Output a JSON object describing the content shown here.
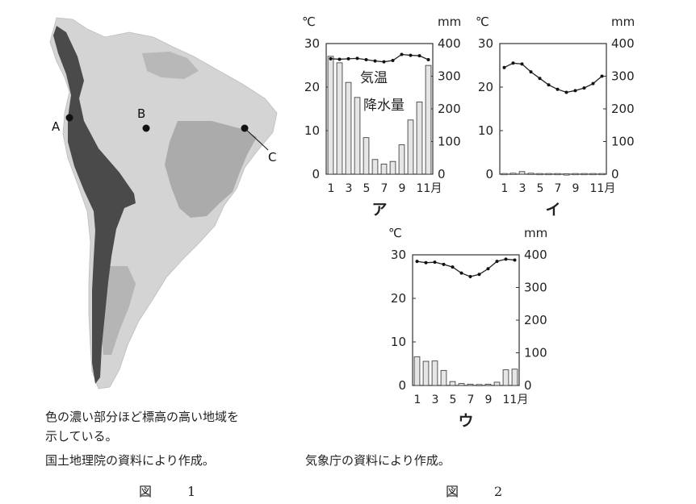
{
  "figure1": {
    "label": "図　1",
    "caption_lines": [
      "色の濃い部分ほど標高の高い地域を",
      "示している。"
    ],
    "source": "国土地理院の資料により作成。",
    "points": [
      {
        "id": "A",
        "name": "A"
      },
      {
        "id": "B",
        "name": "B"
      },
      {
        "id": "C",
        "name": "C"
      }
    ],
    "colors": {
      "low": "#d4d4d4",
      "mid": "#a9a9a9",
      "high": "#4a4a4a"
    }
  },
  "figure2": {
    "label": "図　2",
    "source": "気象庁の資料により作成。"
  },
  "chart_data": [
    {
      "type": "bar",
      "name": "ア",
      "title": "ア",
      "categories": [
        "1",
        "2",
        "3",
        "4",
        "5",
        "6",
        "7",
        "8",
        "9",
        "10",
        "11",
        "12"
      ],
      "x_tick_labels": [
        "1",
        "3",
        "5",
        "7",
        "9",
        "11月"
      ],
      "left_unit": "℃",
      "right_unit": "mm",
      "left_ticks": [
        "0",
        "10",
        "20",
        "30"
      ],
      "right_ticks": [
        "0",
        "100",
        "200",
        "300",
        "400"
      ],
      "left_range": [
        0,
        30
      ],
      "right_range": [
        0,
        400
      ],
      "annotations": [
        "気温",
        "降水量"
      ],
      "series": [
        {
          "name": "気温",
          "kind": "line",
          "axis": "left",
          "values": [
            26.5,
            26.4,
            26.5,
            26.6,
            26.3,
            26.0,
            25.8,
            26.1,
            27.5,
            27.3,
            27.2,
            26.3
          ]
        },
        {
          "name": "降水量",
          "kind": "bar",
          "axis": "right",
          "values": [
            361,
            341,
            281,
            235,
            112,
            45,
            31,
            39,
            90,
            166,
            221,
            333
          ]
        }
      ]
    },
    {
      "type": "bar",
      "name": "イ",
      "title": "イ",
      "categories": [
        "1",
        "2",
        "3",
        "4",
        "5",
        "6",
        "7",
        "8",
        "9",
        "10",
        "11",
        "12"
      ],
      "x_tick_labels": [
        "1",
        "3",
        "5",
        "7",
        "9",
        "11月"
      ],
      "left_unit": "℃",
      "right_unit": "mm",
      "left_ticks": [
        "0",
        "10",
        "20",
        "30"
      ],
      "right_ticks": [
        "0",
        "100",
        "200",
        "300",
        "400"
      ],
      "left_range": [
        0,
        30
      ],
      "right_range": [
        0,
        400
      ],
      "series": [
        {
          "name": "気温",
          "kind": "line",
          "axis": "left",
          "values": [
            24.5,
            25.5,
            25.3,
            23.5,
            22.0,
            20.5,
            19.5,
            18.8,
            19.2,
            19.8,
            20.8,
            22.5
          ]
        },
        {
          "name": "降水量",
          "kind": "bar",
          "axis": "right",
          "values": [
            2,
            3,
            8,
            3,
            2,
            2,
            2,
            1,
            2,
            2,
            2,
            2
          ]
        }
      ]
    },
    {
      "type": "bar",
      "name": "ウ",
      "title": "ウ",
      "categories": [
        "1",
        "2",
        "3",
        "4",
        "5",
        "6",
        "7",
        "8",
        "9",
        "10",
        "11",
        "12"
      ],
      "x_tick_labels": [
        "1",
        "3",
        "5",
        "7",
        "9",
        "11月"
      ],
      "left_unit": "℃",
      "right_unit": "mm",
      "left_ticks": [
        "0",
        "10",
        "20",
        "30"
      ],
      "right_ticks": [
        "0",
        "100",
        "200",
        "300",
        "400"
      ],
      "left_range": [
        0,
        30
      ],
      "right_range": [
        0,
        400
      ],
      "series": [
        {
          "name": "気温",
          "kind": "line",
          "axis": "left",
          "values": [
            28.5,
            28.2,
            28.3,
            27.8,
            27.2,
            25.8,
            25.0,
            25.5,
            26.8,
            28.5,
            29.0,
            28.8
          ]
        },
        {
          "name": "降水量",
          "kind": "bar",
          "axis": "right",
          "values": [
            88,
            74,
            75,
            46,
            12,
            6,
            4,
            3,
            4,
            10,
            48,
            50
          ]
        }
      ]
    }
  ]
}
